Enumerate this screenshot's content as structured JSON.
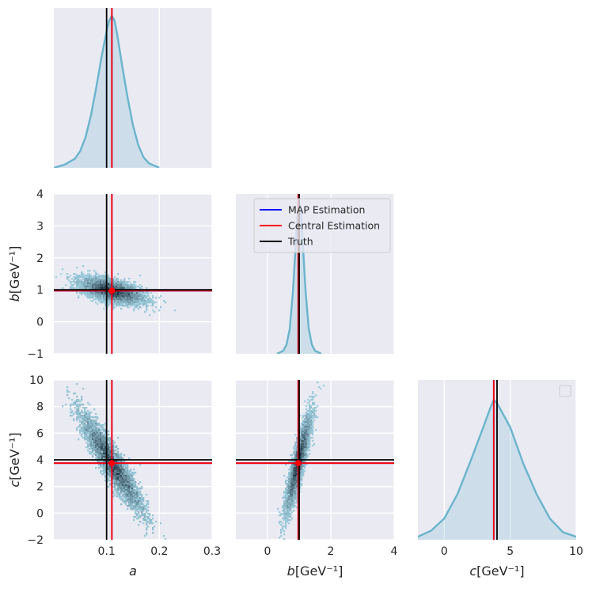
{
  "chart_data": {
    "type": "corner",
    "parameters": [
      {
        "name": "a",
        "label_main": "a",
        "label_unit": "",
        "range": [
          0.0,
          0.3
        ],
        "ticks": [
          0.1,
          0.2,
          0.3
        ],
        "tick_labels": [
          "0.1",
          "0.2",
          "0.3"
        ]
      },
      {
        "name": "b",
        "label_main": "b",
        "label_unit": "[GeV⁻¹]",
        "range": [
          -1,
          4
        ],
        "ticks": [
          0,
          2,
          4
        ],
        "tick_labels": [
          "0",
          "2",
          "4"
        ],
        "y_ticks": [
          -1,
          0,
          1,
          2,
          3,
          4
        ],
        "y_tick_labels": [
          "−1",
          "0",
          "1",
          "2",
          "3",
          "4"
        ]
      },
      {
        "name": "c",
        "label_main": "c",
        "label_unit": "[GeV⁻¹]",
        "range": [
          -2,
          10
        ],
        "ticks": [
          0,
          5,
          10
        ],
        "tick_labels": [
          "0",
          "5",
          "10"
        ],
        "y_ticks": [
          -2,
          0,
          2,
          4,
          6,
          8,
          10
        ],
        "y_tick_labels": [
          "−2",
          "0",
          "2",
          "4",
          "6",
          "8",
          "10"
        ]
      }
    ],
    "truth": {
      "a": 0.1,
      "b": 1.0,
      "c": 4.0
    },
    "map_estimate": {
      "a": 0.11,
      "b": 0.97,
      "c": 3.75
    },
    "central_estimate": {
      "a": 0.11,
      "b": 0.97,
      "c": 3.75
    },
    "marginals": {
      "a": {
        "x": [
          0.0,
          0.02,
          0.04,
          0.05,
          0.06,
          0.07,
          0.08,
          0.09,
          0.1,
          0.105,
          0.11,
          0.115,
          0.12,
          0.13,
          0.14,
          0.15,
          0.16,
          0.17,
          0.18,
          0.2
        ],
        "density": [
          0.0,
          0.02,
          0.06,
          0.11,
          0.2,
          0.34,
          0.52,
          0.72,
          0.9,
          0.97,
          1.0,
          0.97,
          0.88,
          0.66,
          0.46,
          0.28,
          0.15,
          0.07,
          0.03,
          0.0
        ]
      },
      "b": {
        "x": [
          0.3,
          0.5,
          0.6,
          0.7,
          0.8,
          0.9,
          0.95,
          1.0,
          1.05,
          1.1,
          1.2,
          1.3,
          1.4,
          1.5,
          1.7
        ],
        "density": [
          0.0,
          0.02,
          0.06,
          0.16,
          0.4,
          0.75,
          0.92,
          1.0,
          0.93,
          0.78,
          0.42,
          0.17,
          0.06,
          0.02,
          0.0
        ]
      },
      "c": {
        "x": [
          -2,
          -1,
          0,
          1,
          2,
          3,
          3.5,
          3.75,
          4,
          5,
          6,
          7,
          8,
          9,
          10
        ],
        "density": [
          0.02,
          0.06,
          0.14,
          0.3,
          0.52,
          0.75,
          0.87,
          0.92,
          0.9,
          0.74,
          0.5,
          0.3,
          0.14,
          0.05,
          0.02
        ]
      }
    },
    "joint": [
      {
        "x": "a",
        "y": "b",
        "corr": -0.55
      },
      {
        "x": "a",
        "y": "c",
        "corr": -0.92
      },
      {
        "x": "b",
        "y": "c",
        "corr": 0.88
      }
    ],
    "legend": {
      "placement": "upper-left of b marginal",
      "entries": [
        "MAP Estimation",
        "Central Estimation",
        "Truth"
      ]
    },
    "colors": {
      "map": "#0000ff",
      "central": "#ff0000",
      "truth": "#000000",
      "kde": "#6ab4cc",
      "panel_bg": "#eaeaf2",
      "grid": "#ffffff"
    }
  }
}
